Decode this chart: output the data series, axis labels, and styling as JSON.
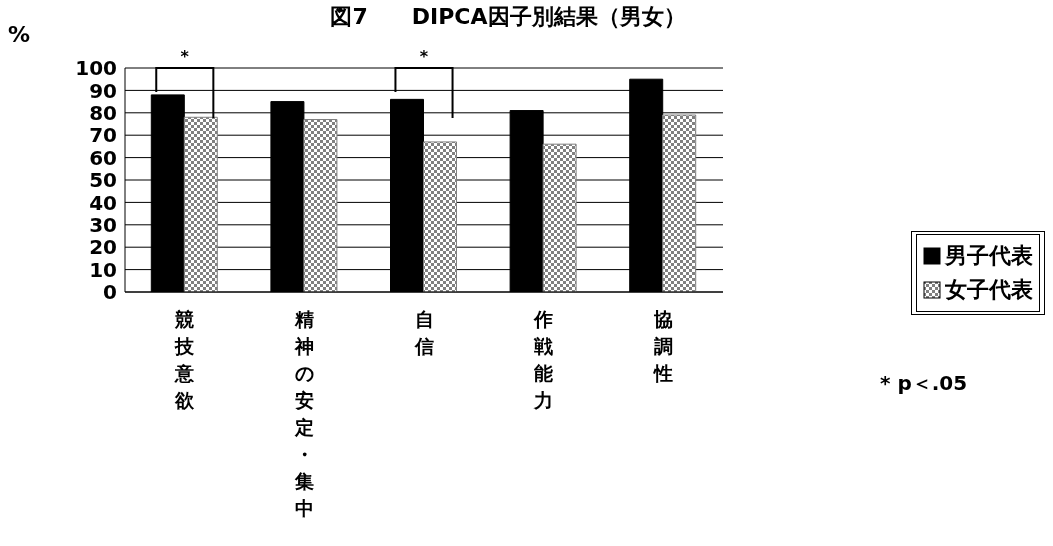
{
  "chart_data": {
    "type": "bar",
    "title": "図7　　DIPCA因子別結果（男女）",
    "ylabel": "%",
    "categories": [
      "競技意欲",
      "精神の安定・集中",
      "自信",
      "作戦能力",
      "協調性"
    ],
    "series": [
      {
        "name": "男子代表",
        "color": "#000000",
        "values": [
          88,
          85,
          86,
          81,
          95
        ]
      },
      {
        "name": "女子代表",
        "color": "#808080",
        "values": [
          78,
          77,
          67,
          66,
          79
        ]
      }
    ],
    "ylim": [
      0,
      100
    ],
    "yticks": [
      0,
      10,
      20,
      30,
      40,
      50,
      60,
      70,
      80,
      90,
      100
    ],
    "grid": "y",
    "legend": "right",
    "annotations": [
      "*",
      "*",
      "* p＜.05"
    ]
  }
}
